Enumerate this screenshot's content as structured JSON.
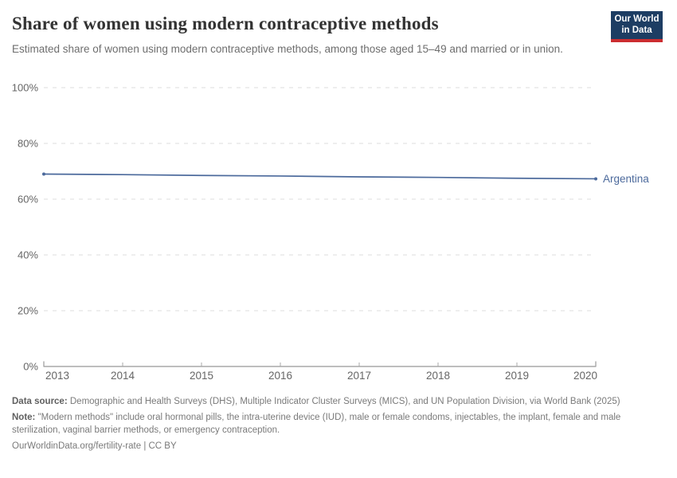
{
  "header": {
    "title": "Share of women using modern contraceptive methods",
    "subtitle": "Estimated share of women using modern contraceptive methods, among those aged 15–49 and married or in union."
  },
  "logo": {
    "line1": "Our World",
    "line2": "in Data",
    "bg_color": "#1d3d63",
    "accent_color": "#cb2d30"
  },
  "chart_data": {
    "type": "line",
    "title": "Share of women using modern contraceptive methods",
    "x": [
      2013,
      2014,
      2015,
      2016,
      2017,
      2018,
      2019,
      2020
    ],
    "series": [
      {
        "name": "Argentina",
        "values": [
          69.0,
          68.8,
          68.5,
          68.3,
          68.0,
          67.8,
          67.5,
          67.3
        ],
        "color": "#4c6a9c"
      }
    ],
    "xlabel": "",
    "ylabel": "",
    "ylim": [
      0,
      100
    ],
    "y_ticks": [
      0,
      20,
      40,
      60,
      80,
      100
    ],
    "y_tick_suffix": "%",
    "grid": "horizontal-dashed",
    "legend_position": "end-of-line-label",
    "colors": {
      "line": "#4c6a9c",
      "grid": "#dddddd",
      "axis": "#a8a8a8",
      "tick_label": "#666666"
    }
  },
  "footer": {
    "data_source_label": "Data source:",
    "data_source_text": " Demographic and Health Surveys (DHS), Multiple Indicator Cluster Surveys (MICS), and UN Population Division, via World Bank (2025)",
    "note_label": "Note:",
    "note_text": " \"Modern methods\" include oral hormonal pills, the intra-uterine device (IUD), male or female condoms, injectables, the implant, female and male sterilization, vaginal barrier methods, or emergency contraception.",
    "license_line": "OurWorldinData.org/fertility-rate | CC BY"
  }
}
